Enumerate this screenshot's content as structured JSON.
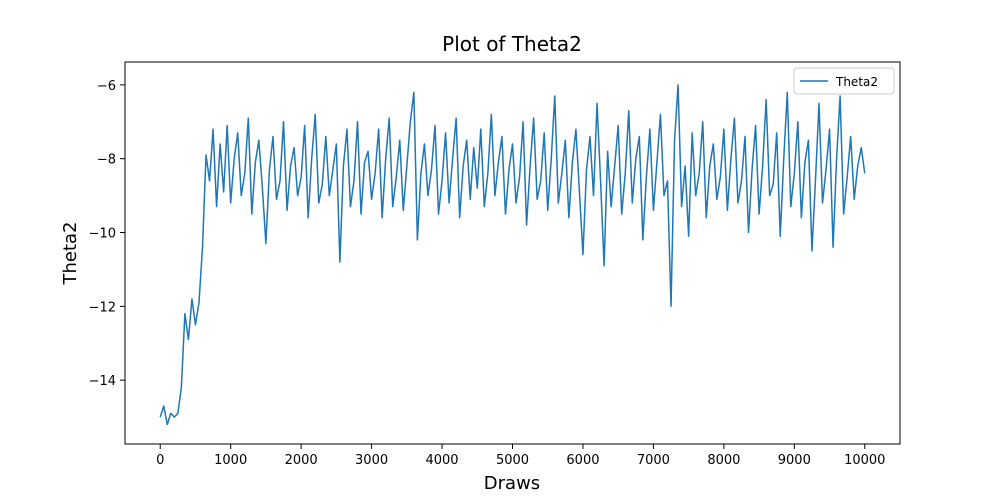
{
  "chart_data": {
    "type": "line",
    "title": "Plot of Theta2",
    "xlabel": "Draws",
    "ylabel": "Theta2",
    "legend": "upper right",
    "grid": false,
    "xlim": [
      -500,
      10500
    ],
    "ylim": [
      -15.73,
      -5.38
    ],
    "xticks": [
      0,
      1000,
      2000,
      3000,
      4000,
      5000,
      6000,
      7000,
      8000,
      9000,
      10000
    ],
    "yticks": [
      {
        "value": -14,
        "label": "−14"
      },
      {
        "value": -12,
        "label": "−12"
      },
      {
        "value": -10,
        "label": "−10"
      },
      {
        "value": -8,
        "label": "−8"
      },
      {
        "value": -6,
        "label": "−6"
      }
    ],
    "x": [
      0,
      50,
      100,
      150,
      200,
      250,
      300,
      350,
      400,
      450,
      500,
      550,
      600,
      650,
      700,
      750,
      800,
      850,
      900,
      950,
      1000,
      1050,
      1100,
      1150,
      1200,
      1250,
      1300,
      1350,
      1400,
      1450,
      1500,
      1550,
      1600,
      1650,
      1700,
      1750,
      1800,
      1850,
      1900,
      1950,
      2000,
      2050,
      2100,
      2150,
      2200,
      2250,
      2300,
      2350,
      2400,
      2450,
      2500,
      2550,
      2600,
      2650,
      2700,
      2750,
      2800,
      2850,
      2900,
      2950,
      3000,
      3050,
      3100,
      3150,
      3200,
      3250,
      3300,
      3350,
      3400,
      3450,
      3500,
      3550,
      3600,
      3650,
      3700,
      3750,
      3800,
      3850,
      3900,
      3950,
      4000,
      4050,
      4100,
      4150,
      4200,
      4250,
      4300,
      4350,
      4400,
      4450,
      4500,
      4550,
      4600,
      4650,
      4700,
      4750,
      4800,
      4850,
      4900,
      4950,
      5000,
      5050,
      5100,
      5150,
      5200,
      5250,
      5300,
      5350,
      5400,
      5450,
      5500,
      5550,
      5600,
      5650,
      5700,
      5750,
      5800,
      5850,
      5900,
      5950,
      6000,
      6050,
      6100,
      6150,
      6200,
      6250,
      6300,
      6350,
      6400,
      6450,
      6500,
      6550,
      6600,
      6650,
      6700,
      6750,
      6800,
      6850,
      6900,
      6950,
      7000,
      7050,
      7100,
      7150,
      7200,
      7250,
      7300,
      7350,
      7400,
      7450,
      7500,
      7550,
      7600,
      7650,
      7700,
      7750,
      7800,
      7850,
      7900,
      7950,
      8000,
      8050,
      8100,
      8150,
      8200,
      8250,
      8300,
      8350,
      8400,
      8450,
      8500,
      8550,
      8600,
      8650,
      8700,
      8750,
      8800,
      8850,
      8900,
      8950,
      9000,
      9050,
      9100,
      9150,
      9200,
      9250,
      9300,
      9350,
      9400,
      9450,
      9500,
      9550,
      9600,
      9650,
      9700,
      9750,
      9800,
      9850,
      9900,
      9950,
      10000
    ],
    "series": [
      {
        "name": "Theta2",
        "color": "#1f77b4",
        "values": [
          -15.0,
          -14.7,
          -15.2,
          -14.9,
          -15.0,
          -14.9,
          -14.2,
          -12.2,
          -12.9,
          -11.8,
          -12.5,
          -11.9,
          -10.4,
          -7.9,
          -8.6,
          -7.2,
          -9.3,
          -7.6,
          -8.9,
          -7.1,
          -9.2,
          -8.0,
          -7.3,
          -9.0,
          -8.4,
          -6.9,
          -9.5,
          -8.1,
          -7.5,
          -8.8,
          -10.3,
          -8.3,
          -7.4,
          -9.1,
          -8.6,
          -7.0,
          -9.4,
          -8.2,
          -7.7,
          -9.0,
          -8.5,
          -7.1,
          -9.6,
          -8.0,
          -6.8,
          -9.2,
          -8.7,
          -7.4,
          -9.0,
          -8.3,
          -7.6,
          -10.8,
          -8.2,
          -7.2,
          -9.3,
          -8.6,
          -7.0,
          -9.5,
          -8.1,
          -7.8,
          -9.1,
          -8.4,
          -7.2,
          -9.6,
          -8.0,
          -6.9,
          -9.3,
          -8.5,
          -7.5,
          -9.4,
          -8.2,
          -7.0,
          -6.2,
          -10.2,
          -8.4,
          -7.6,
          -9.0,
          -8.3,
          -7.1,
          -9.5,
          -8.6,
          -7.3,
          -9.2,
          -8.0,
          -6.9,
          -9.6,
          -8.2,
          -7.5,
          -9.1,
          -7.7,
          -8.8,
          -7.2,
          -9.3,
          -8.4,
          -6.8,
          -9.0,
          -8.1,
          -7.4,
          -9.5,
          -8.3,
          -7.6,
          -9.2,
          -8.5,
          -7.0,
          -9.8,
          -8.2,
          -6.9,
          -9.1,
          -8.6,
          -7.3,
          -9.4,
          -8.0,
          -6.3,
          -9.2,
          -8.4,
          -7.5,
          -9.6,
          -8.1,
          -7.2,
          -8.9,
          -10.6,
          -8.3,
          -7.4,
          -9.0,
          -6.5,
          -8.6,
          -10.9,
          -7.8,
          -9.3,
          -8.2,
          -7.1,
          -9.5,
          -8.4,
          -6.7,
          -9.2,
          -8.0,
          -7.4,
          -10.2,
          -8.5,
          -7.2,
          -9.4,
          -8.1,
          -6.8,
          -9.0,
          -8.6,
          -12.0,
          -7.5,
          -6.0,
          -9.3,
          -8.2,
          -10.1,
          -7.3,
          -9.0,
          -8.4,
          -7.0,
          -9.6,
          -8.2,
          -7.6,
          -9.1,
          -8.5,
          -7.2,
          -9.4,
          -8.0,
          -6.9,
          -9.2,
          -8.6,
          -7.4,
          -10.0,
          -8.3,
          -7.1,
          -9.5,
          -8.2,
          -6.4,
          -9.0,
          -8.7,
          -7.3,
          -10.1,
          -8.0,
          -6.2,
          -9.3,
          -8.4,
          -7.0,
          -9.6,
          -8.1,
          -7.5,
          -10.5,
          -8.6,
          -6.5,
          -9.2,
          -8.3,
          -7.2,
          -10.4,
          -8.0,
          -6.3,
          -9.5,
          -8.5,
          -7.4,
          -9.1,
          -8.2,
          -7.7,
          -8.4
        ]
      }
    ]
  }
}
